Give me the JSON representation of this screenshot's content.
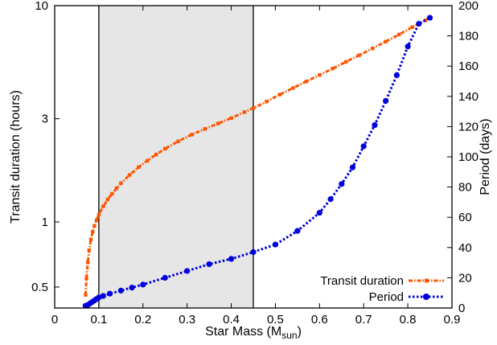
{
  "chart_data": {
    "type": "line",
    "xlabel": "Star Mass (M",
    "xlabel_sub": "sun",
    "xlabel_close": ")",
    "ylabel_left": "Transit duration (hours)",
    "ylabel_right": "Period (days)",
    "xlim": [
      0,
      0.9
    ],
    "ylim_left": [
      0.4,
      10
    ],
    "ylim_left_scale": "log",
    "ylim_right": [
      0,
      200
    ],
    "x_ticks": [
      "0",
      "0.1",
      "0.2",
      "0.3",
      "0.4",
      "0.5",
      "0.6",
      "0.7",
      "0.8",
      "0.9"
    ],
    "x_tick_values": [
      0,
      0.1,
      0.2,
      0.3,
      0.4,
      0.5,
      0.6,
      0.7,
      0.8,
      0.9
    ],
    "y_left_ticks": [
      "0.5",
      "1",
      "3",
      "10"
    ],
    "y_left_tick_values": [
      0.5,
      1,
      3,
      10
    ],
    "y_right_ticks": [
      "0",
      "20",
      "40",
      "60",
      "80",
      "100",
      "120",
      "140",
      "160",
      "180",
      "200"
    ],
    "y_right_tick_values": [
      0,
      20,
      40,
      60,
      80,
      100,
      120,
      140,
      160,
      180,
      200
    ],
    "shaded_region": {
      "x_from": 0.1,
      "x_to": 0.45,
      "color": "#e6e6e6"
    },
    "grid": false,
    "legend_position": "bottom-right",
    "series": [
      {
        "name": "Transit duration",
        "axis": "left",
        "color": "#ff5500",
        "style": "dash-dot",
        "x": [
          0.07,
          0.072,
          0.075,
          0.078,
          0.082,
          0.086,
          0.09,
          0.095,
          0.1,
          0.11,
          0.12,
          0.13,
          0.14,
          0.15,
          0.17,
          0.19,
          0.21,
          0.23,
          0.25,
          0.28,
          0.31,
          0.34,
          0.37,
          0.4,
          0.43,
          0.45,
          0.48,
          0.51,
          0.54,
          0.57,
          0.6,
          0.63,
          0.66,
          0.69,
          0.72,
          0.75,
          0.78,
          0.81,
          0.84,
          0.85
        ],
        "values": [
          0.46,
          0.55,
          0.65,
          0.74,
          0.83,
          0.9,
          0.96,
          1.02,
          1.08,
          1.18,
          1.27,
          1.35,
          1.43,
          1.51,
          1.65,
          1.79,
          1.92,
          2.05,
          2.18,
          2.36,
          2.53,
          2.69,
          2.85,
          3.02,
          3.22,
          3.36,
          3.6,
          3.88,
          4.16,
          4.46,
          4.78,
          5.12,
          5.5,
          5.9,
          6.34,
          6.82,
          7.35,
          7.95,
          8.55,
          8.8
        ]
      },
      {
        "name": "Period",
        "axis": "right",
        "color": "#0000dd",
        "style": "dotted",
        "x": [
          0.07,
          0.075,
          0.08,
          0.085,
          0.09,
          0.095,
          0.1,
          0.11,
          0.125,
          0.15,
          0.175,
          0.2,
          0.25,
          0.3,
          0.35,
          0.4,
          0.45,
          0.5,
          0.55,
          0.6,
          0.625,
          0.65,
          0.675,
          0.7,
          0.725,
          0.75,
          0.775,
          0.8,
          0.825,
          0.85
        ],
        "values": [
          1.5,
          2,
          3,
          4,
          5,
          6,
          7,
          8,
          9.5,
          11.5,
          13.5,
          15.5,
          20,
          24.5,
          29,
          32.5,
          37,
          42,
          51,
          63,
          72,
          82,
          93,
          107,
          121,
          137,
          154,
          173,
          188,
          192
        ]
      }
    ]
  }
}
